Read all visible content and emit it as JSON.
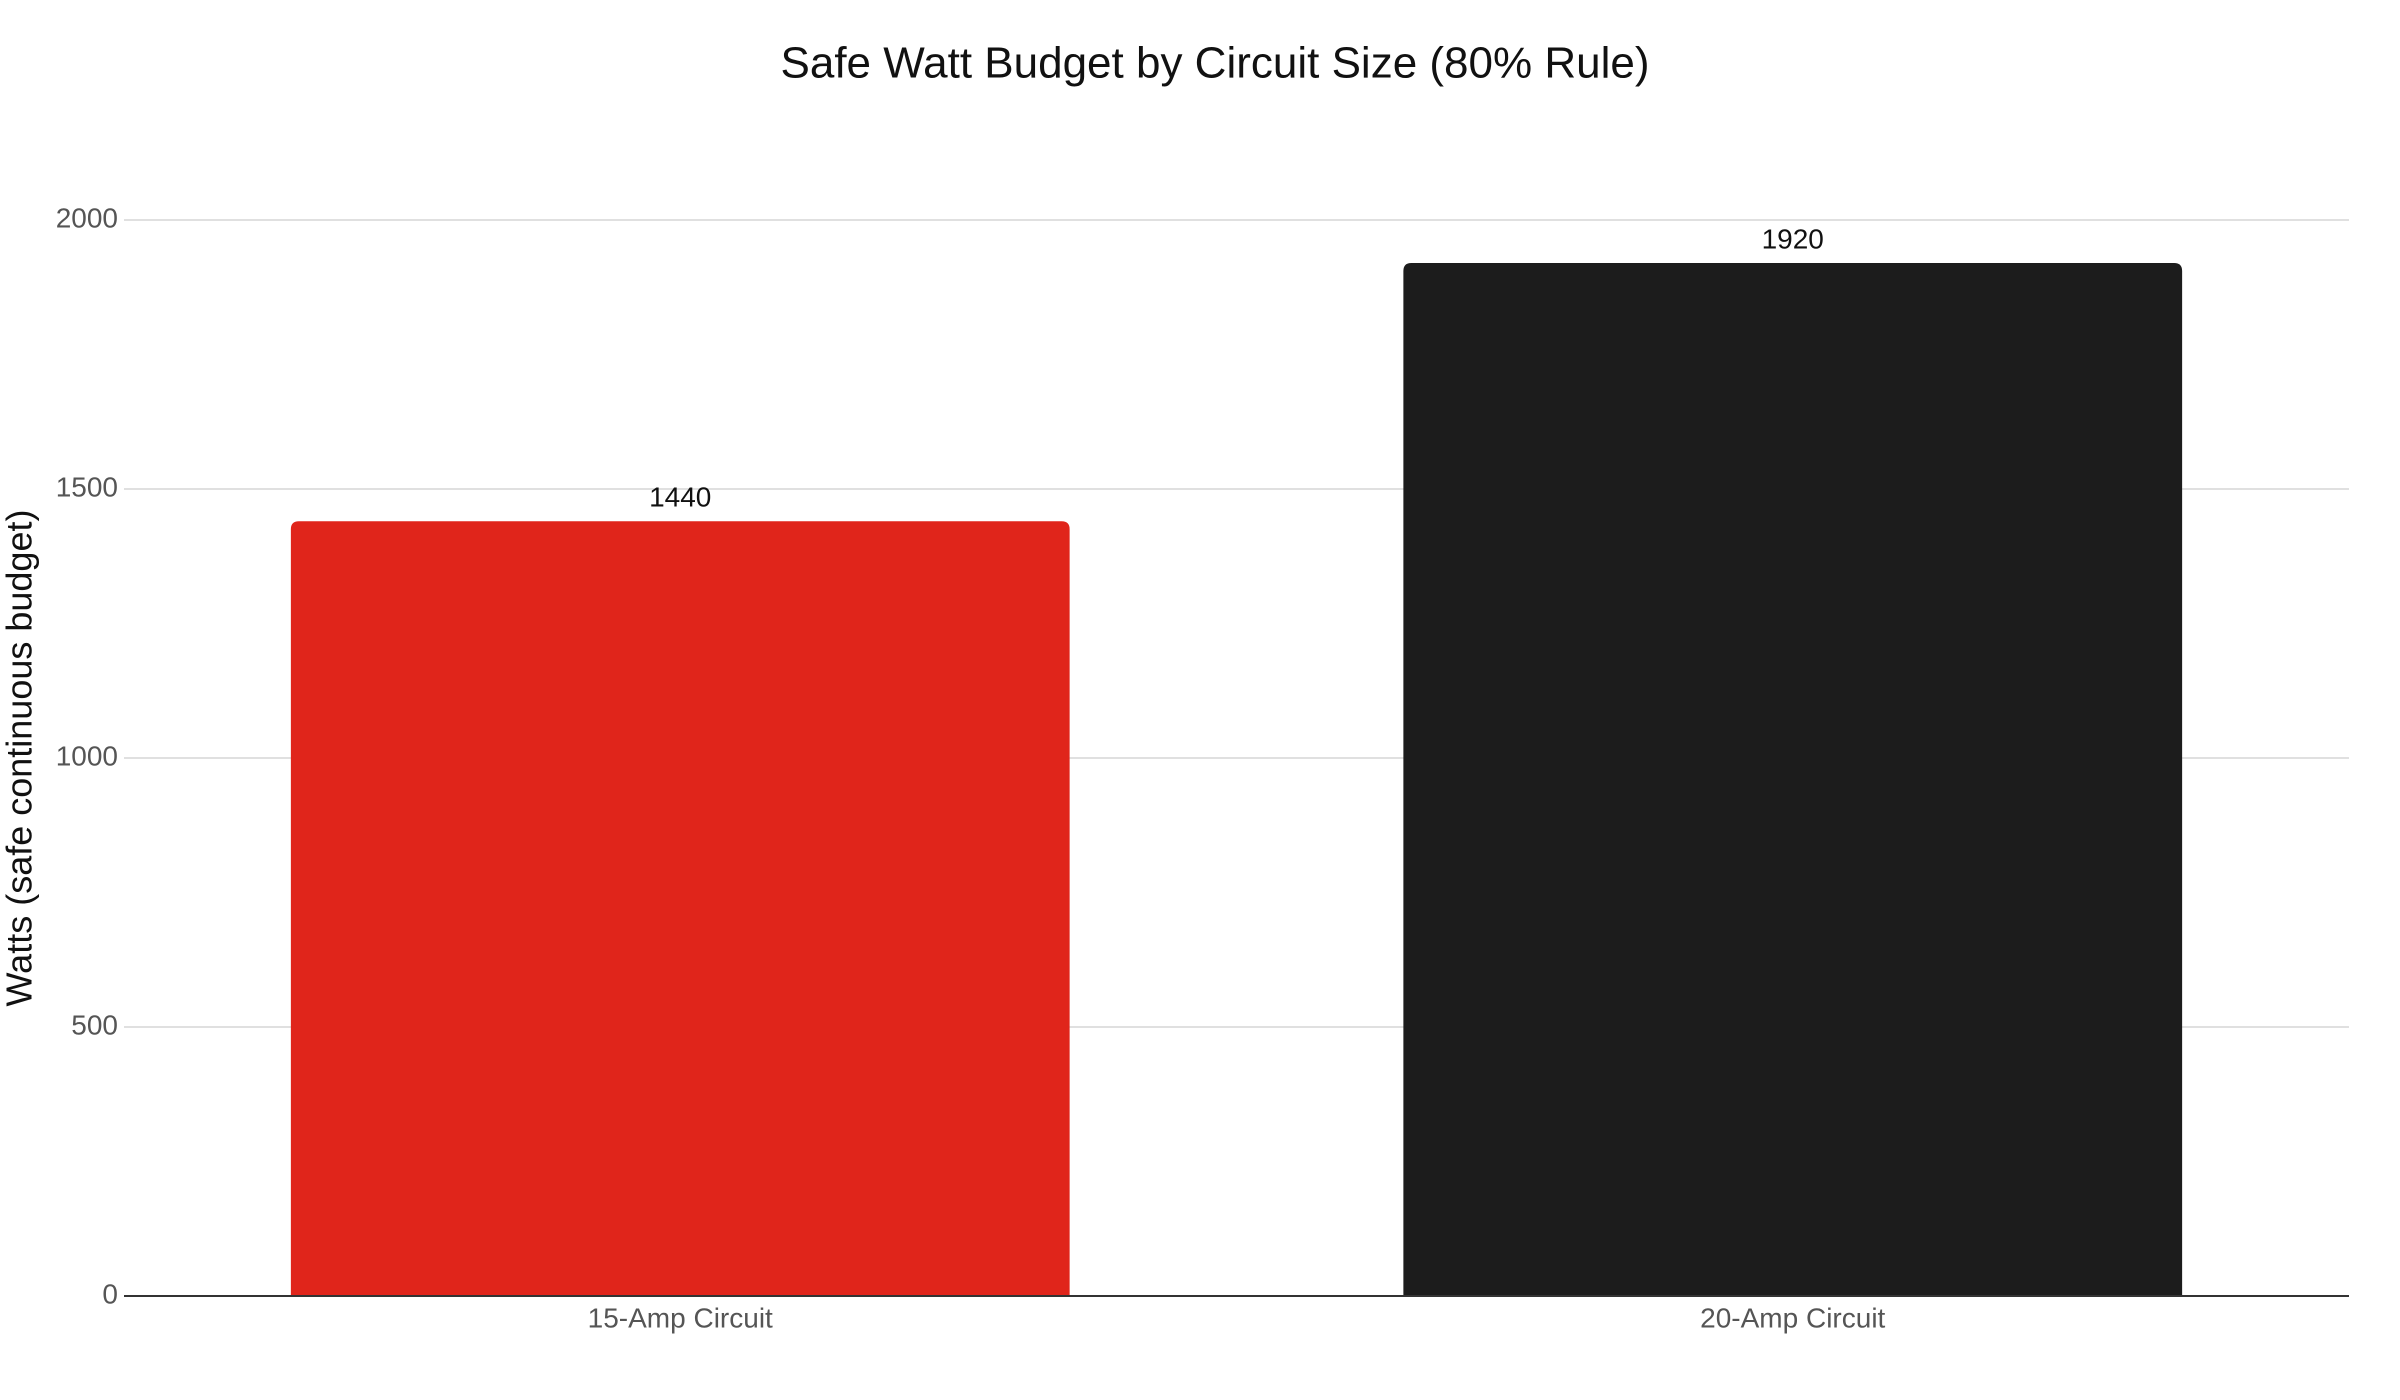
{
  "chart_data": {
    "type": "bar",
    "title": "Safe Watt Budget by Circuit Size (80% Rule)",
    "y_label": "Watts (safe continuous budget)",
    "categories": [
      "15-Amp Circuit",
      "20-Amp Circuit"
    ],
    "values": [
      1440,
      1920
    ],
    "colors": [
      "#e0251b",
      "#1c1c1c"
    ],
    "ylim": [
      0,
      2000
    ],
    "yticks": [
      0,
      500,
      1000,
      1500,
      2000
    ],
    "grid": true
  }
}
